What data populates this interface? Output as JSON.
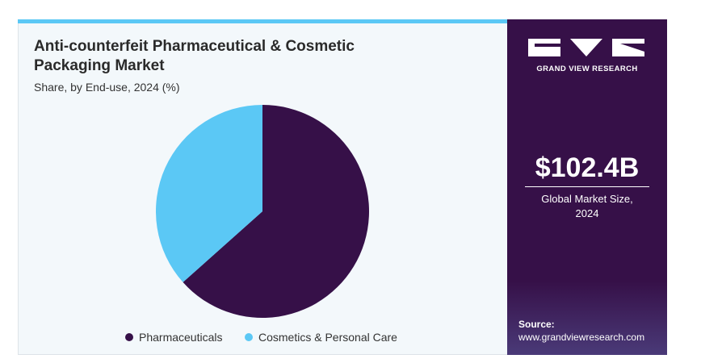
{
  "chart_data": {
    "type": "pie",
    "title": "Anti-counterfeit Pharmaceutical & Cosmetic Packaging Market",
    "subtitle": "Share, by End-use, 2024 (%)",
    "categories": [
      "Pharmaceuticals",
      "Cosmetics & Personal Care"
    ],
    "values": [
      63.4,
      36.6
    ],
    "colors": [
      "#361048",
      "#5bc8f5"
    ]
  },
  "sidebar": {
    "brand": "GRAND VIEW RESEARCH",
    "market_size": "$102.4B",
    "market_size_label": "Global Market Size, 2024",
    "source_label": "Source:",
    "source_url": "www.grandviewresearch.com"
  }
}
